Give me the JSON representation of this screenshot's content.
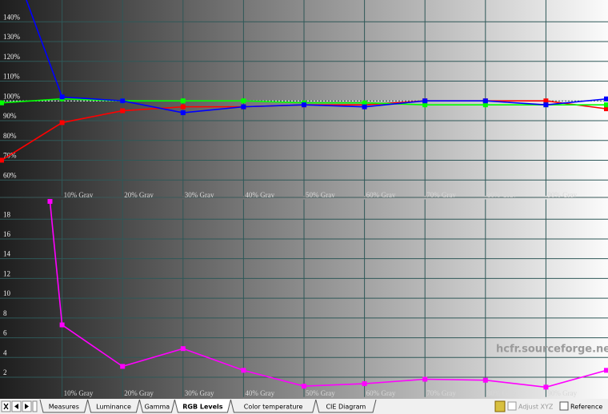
{
  "chart_data": [
    {
      "type": "line",
      "xlim": [
        0,
        100
      ],
      "ylim": [
        52,
        151
      ],
      "xticks": [
        {
          "value": 10,
          "label": "10% Gray"
        },
        {
          "value": 20,
          "label": "20% Gray"
        },
        {
          "value": 30,
          "label": "30% Gray"
        },
        {
          "value": 40,
          "label": "40% Gray"
        },
        {
          "value": 50,
          "label": "50% Gray"
        },
        {
          "value": 60,
          "label": "60% Gray"
        },
        {
          "value": 70,
          "label": "70% Gray"
        },
        {
          "value": 80,
          "label": "80% Gray"
        },
        {
          "value": 90,
          "label": "90% Gray"
        }
      ],
      "yticks": [
        {
          "value": 60,
          "label": "60%"
        },
        {
          "value": 70,
          "label": "70%"
        },
        {
          "value": 80,
          "label": "80%"
        },
        {
          "value": 90,
          "label": "90%"
        },
        {
          "value": 100,
          "label": "100%"
        },
        {
          "value": 110,
          "label": "110%"
        },
        {
          "value": 120,
          "label": "120%"
        },
        {
          "value": 130,
          "label": "130%"
        },
        {
          "value": 140,
          "label": "140%"
        }
      ],
      "reference": 100,
      "x": [
        0,
        10,
        20,
        30,
        40,
        50,
        60,
        70,
        80,
        90,
        100
      ],
      "series": [
        {
          "color": "#ff0000",
          "values": [
            70,
            89,
            95,
            97,
            97,
            98,
            98,
            100,
            100,
            100,
            96
          ]
        },
        {
          "color": "#00ff00",
          "values": [
            99,
            101,
            100,
            100,
            100,
            99,
            99,
            98,
            98,
            98,
            98
          ]
        },
        {
          "color": "#0000ff",
          "values": [
            185,
            102,
            100,
            94,
            97,
            98,
            97,
            100,
            100,
            98,
            101
          ]
        }
      ]
    },
    {
      "type": "line",
      "xlim": [
        0,
        100
      ],
      "ylim": [
        0,
        20
      ],
      "xticks": [
        {
          "value": 10,
          "label": "10% Gray"
        },
        {
          "value": 20,
          "label": "20% Gray"
        },
        {
          "value": 30,
          "label": "30% Gray"
        },
        {
          "value": 40,
          "label": "40% Gray"
        },
        {
          "value": 50,
          "label": "50% Gray"
        },
        {
          "value": 60,
          "label": "60% Gray"
        },
        {
          "value": 70,
          "label": "70% Gray"
        },
        {
          "value": 80,
          "label": "80% Gray"
        },
        {
          "value": 90,
          "label": "90% Gray"
        }
      ],
      "yticks": [
        2,
        4,
        6,
        8,
        10,
        12,
        14,
        16,
        18
      ],
      "x": [
        8,
        10,
        20,
        30,
        40,
        50,
        60,
        70,
        80,
        90,
        100
      ],
      "series": [
        {
          "color": "#ff00ff",
          "values": [
            19.8,
            7.3,
            3.1,
            4.9,
            2.7,
            1.1,
            1.35,
            1.8,
            1.7,
            1.0,
            2.7
          ]
        }
      ]
    }
  ],
  "watermark": "hcfr.sourceforge.net",
  "tabs": [
    "Measures",
    "Luminance",
    "Gamma",
    "RGB Levels",
    "Color temperature",
    "CIE Diagram"
  ],
  "options": [
    "Adjust XYZ",
    "Reference"
  ]
}
